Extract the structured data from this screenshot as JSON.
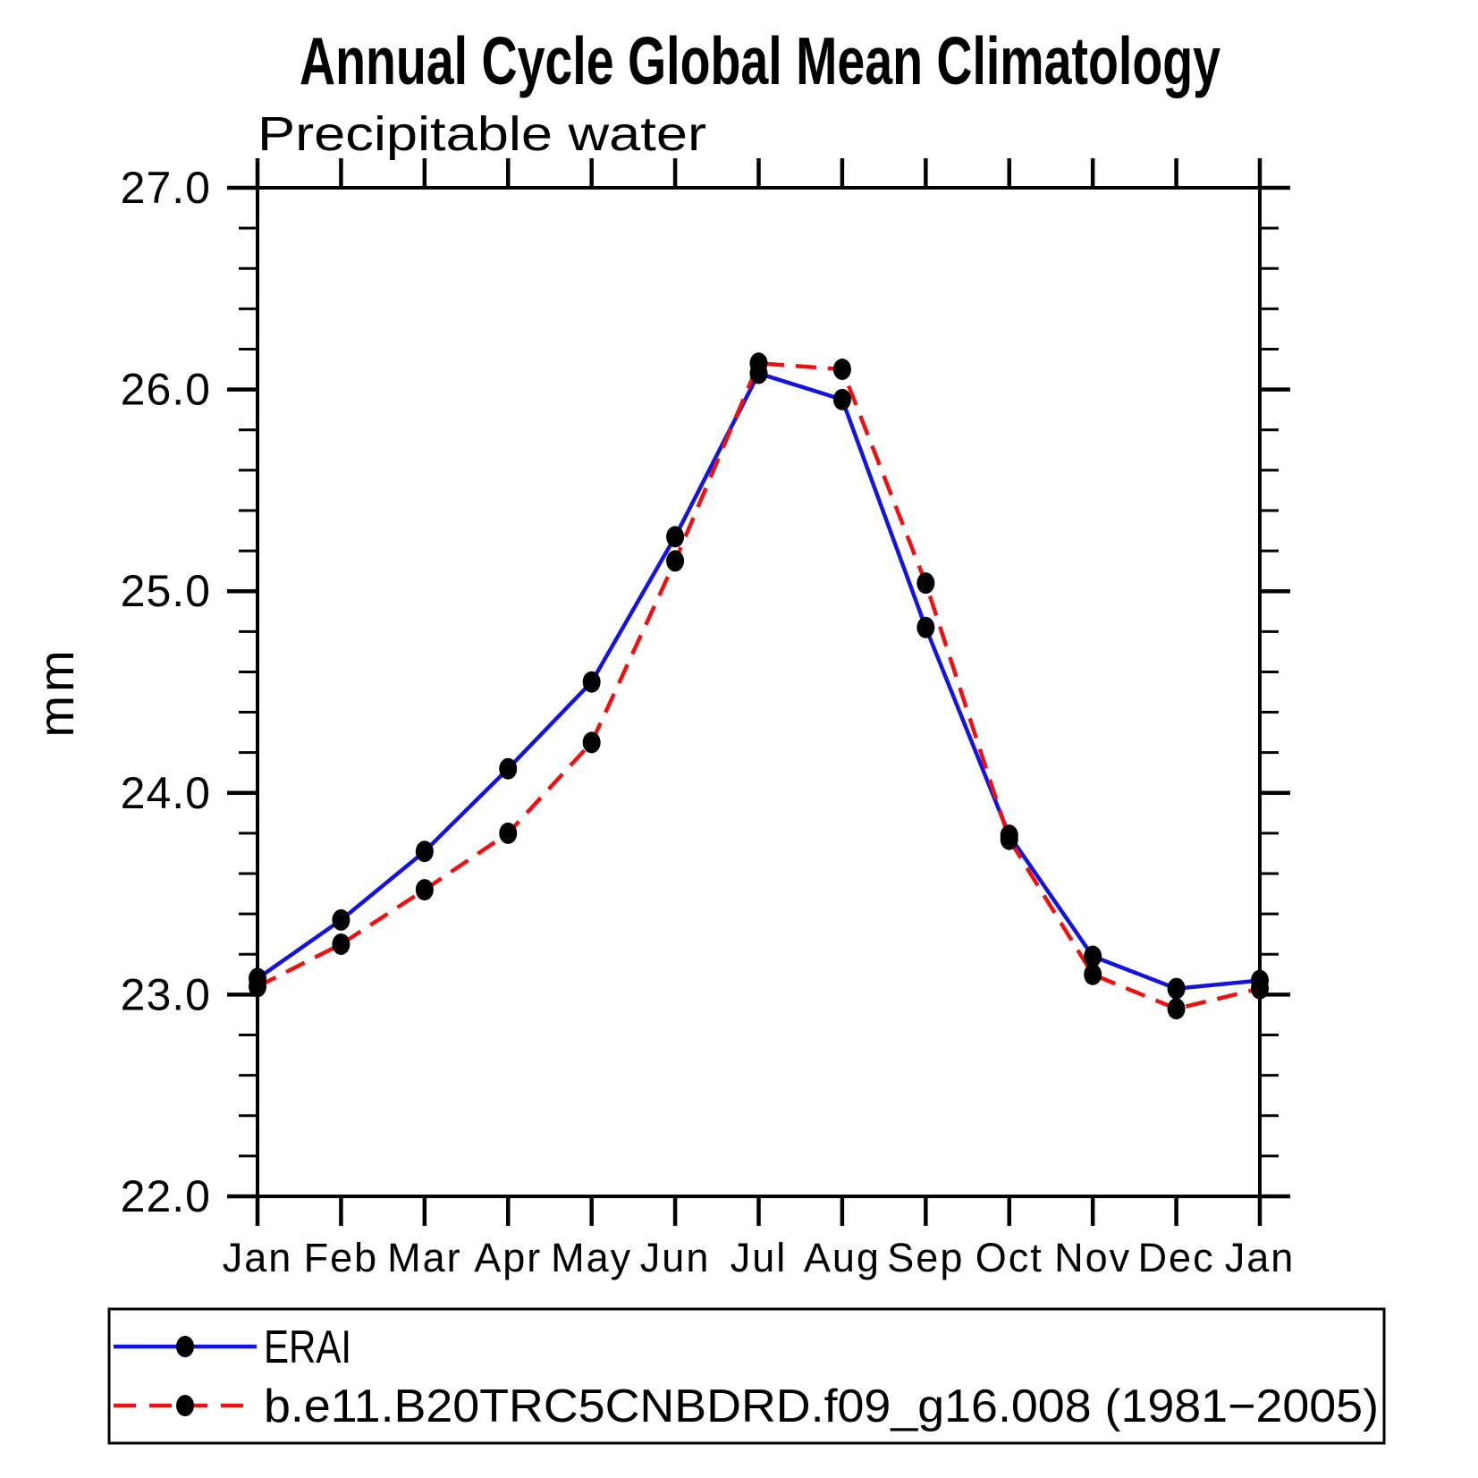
{
  "title": "Annual Cycle Global Mean Climatology",
  "subtitle": "Precipitable water",
  "ylabel": "mm",
  "chart_data": {
    "type": "line",
    "categories": [
      "Jan",
      "Feb",
      "Mar",
      "Apr",
      "May",
      "Jun",
      "Jul",
      "Aug",
      "Sep",
      "Oct",
      "Nov",
      "Dec",
      "Jan"
    ],
    "xlabel": "",
    "ylabel": "mm",
    "ylim": [
      22.0,
      27.0
    ],
    "ytick_major_labels": [
      "22.0",
      "23.0",
      "24.0",
      "25.0",
      "26.0",
      "27.0"
    ],
    "ytick_major_values": [
      22.0,
      23.0,
      24.0,
      25.0,
      26.0,
      27.0
    ],
    "ytick_minor_step": 0.2,
    "grid": false,
    "legend_position": "bottom",
    "axis_color": "#000000",
    "marker_color": "#000000",
    "series": [
      {
        "name": "ERAI",
        "color": "#1414e0",
        "style": "solid",
        "marker": "filled-circle",
        "values": [
          23.08,
          23.37,
          23.71,
          24.12,
          24.55,
          25.27,
          26.08,
          25.95,
          24.82,
          23.79,
          23.19,
          23.03,
          23.07
        ]
      },
      {
        "name": "b.e11.B20TRC5CNBDRD.f09_g16.008 (1981−2005)",
        "color": "#f01010",
        "style": "dashed",
        "marker": "filled-circle",
        "values": [
          23.04,
          23.25,
          23.52,
          23.8,
          24.25,
          25.15,
          26.13,
          26.1,
          25.04,
          23.77,
          23.1,
          22.93,
          23.03
        ]
      }
    ]
  }
}
